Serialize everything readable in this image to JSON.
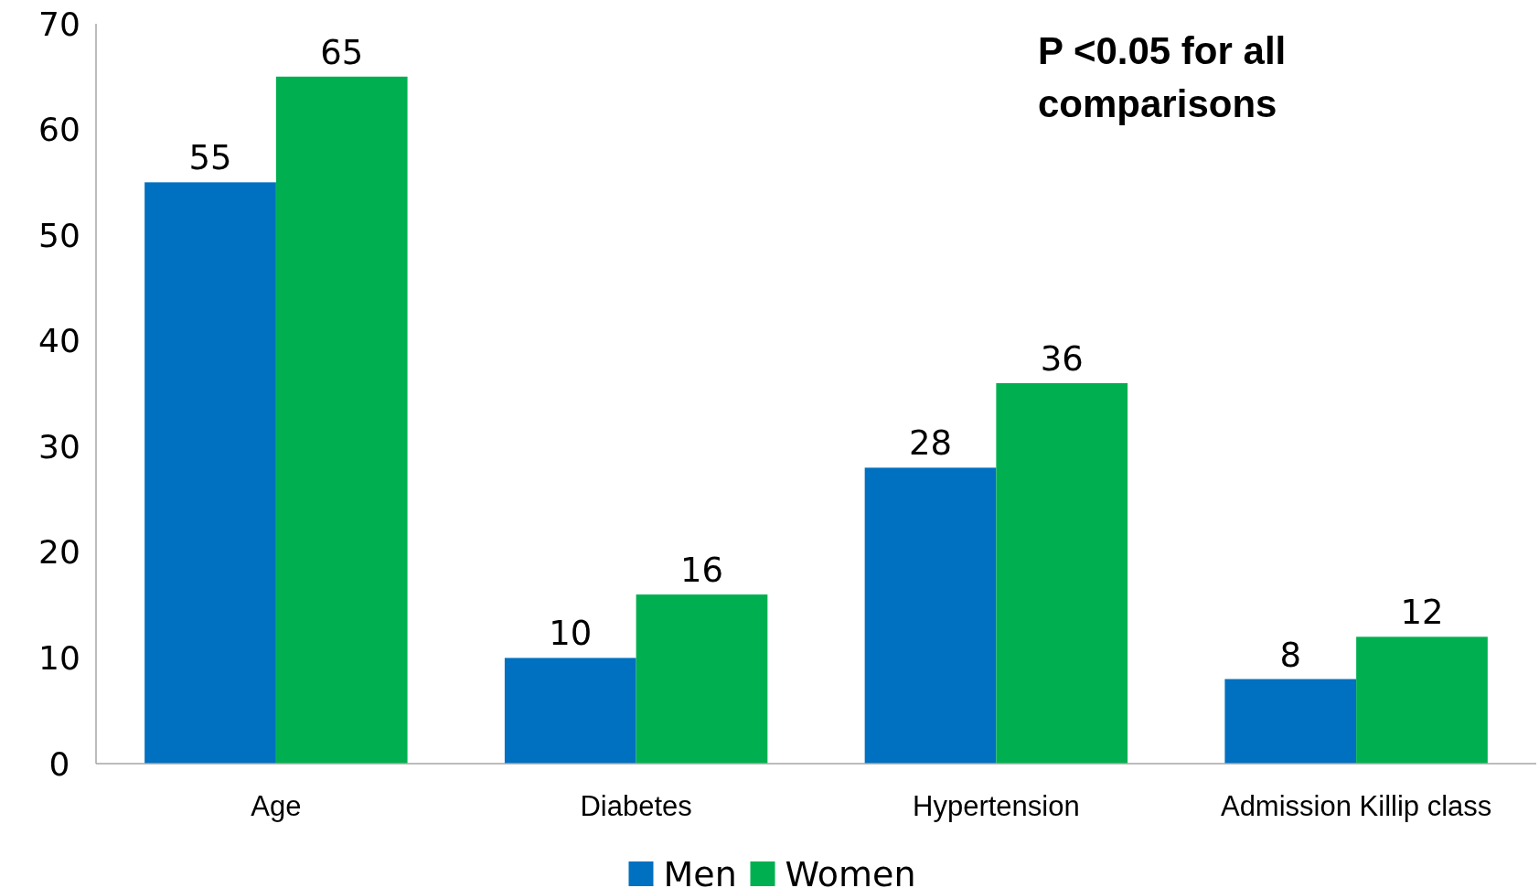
{
  "chart_data": {
    "type": "bar",
    "categories": [
      "Age",
      "Diabetes",
      "Hypertension",
      "Admission Killip class"
    ],
    "series": [
      {
        "name": "Men",
        "color": "#0070c0",
        "values": [
          55,
          10,
          28,
          8
        ]
      },
      {
        "name": "Women",
        "color": "#00b050",
        "values": [
          65,
          16,
          36,
          12
        ]
      }
    ],
    "ylim": [
      0,
      70
    ],
    "yticks": [
      0,
      10,
      20,
      30,
      40,
      50,
      60,
      70
    ],
    "data_labels": true,
    "legend": "bottom",
    "grid": false,
    "annotations": [
      "P <0.05 for all comparisons"
    ]
  }
}
